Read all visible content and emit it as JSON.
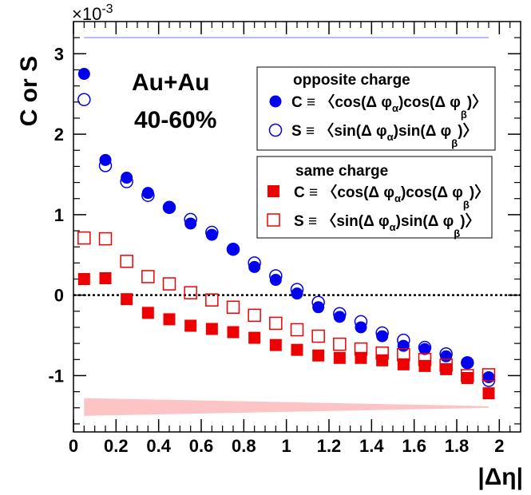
{
  "chart_data": {
    "type": "scatter",
    "xlabel": "|Δη|",
    "ylabel": "C or S",
    "y_scale_label": "×10",
    "y_scale_exponent": "-3",
    "xlim": [
      0,
      2.1
    ],
    "ylim": [
      -1.7,
      3.4
    ],
    "x_ticks": [
      0,
      0.2,
      0.4,
      0.6,
      0.8,
      1,
      1.2,
      1.4,
      1.6,
      1.8,
      2
    ],
    "x_tick_labels": [
      "0",
      "0.2",
      "0.4",
      "0.6",
      "0.8",
      "1",
      "1.2",
      "1.4",
      "1.6",
      "1.8",
      "2"
    ],
    "y_ticks": [
      -1,
      0,
      1,
      2,
      3
    ],
    "y_tick_labels": [
      "-1",
      "0",
      "1",
      "2",
      "3"
    ],
    "system_label": "Au+Au",
    "centrality_label": "40-60%",
    "zero_line": true,
    "legend": {
      "opposite_title": "opposite charge",
      "same_title": "same charge",
      "C_prefix": "C ≡ 〈cos(Δ φ",
      "C_mid": ")cos(Δ φ",
      "C_suffix": ")〉",
      "S_prefix": "S ≡ 〈sin(Δ φ",
      "S_mid": ")sin(Δ φ",
      "S_suffix": ")〉",
      "sub_alpha": "α",
      "sub_beta": "β"
    },
    "colors": {
      "blue": "#0000ee",
      "red": "#ee0000",
      "blue_band": "#b8b8f4",
      "red_band": "#fcc4c4"
    },
    "x": [
      0.05,
      0.15,
      0.25,
      0.35,
      0.45,
      0.55,
      0.65,
      0.75,
      0.85,
      0.95,
      1.05,
      1.15,
      1.25,
      1.35,
      1.45,
      1.55,
      1.65,
      1.75,
      1.85,
      1.95
    ],
    "series": [
      {
        "name": "opposite charge C",
        "marker": "filled-circle",
        "color": "#0000ee",
        "values": [
          2.75,
          1.68,
          1.46,
          1.27,
          1.09,
          0.89,
          0.75,
          0.57,
          0.35,
          0.19,
          0.02,
          -0.15,
          -0.27,
          -0.4,
          -0.51,
          -0.63,
          -0.67,
          -0.76,
          -0.84,
          -1.02
        ]
      },
      {
        "name": "opposite charge S",
        "marker": "open-circle",
        "color": "#0000ee",
        "values": [
          2.43,
          1.61,
          1.41,
          1.24,
          1.09,
          0.94,
          0.78,
          0.57,
          0.4,
          0.24,
          0.07,
          -0.09,
          -0.23,
          -0.33,
          -0.47,
          -0.56,
          -0.65,
          -0.73,
          -0.84,
          -1.06
        ]
      },
      {
        "name": "same charge C",
        "marker": "filled-square",
        "color": "#ee0000",
        "values": [
          0.2,
          0.21,
          -0.05,
          -0.22,
          -0.3,
          -0.38,
          -0.42,
          -0.46,
          -0.53,
          -0.62,
          -0.68,
          -0.75,
          -0.78,
          -0.78,
          -0.81,
          -0.86,
          -0.88,
          -0.92,
          -1.03,
          -1.22
        ]
      },
      {
        "name": "same charge S",
        "marker": "open-square",
        "color": "#ee0000",
        "values": [
          0.71,
          0.7,
          0.42,
          0.23,
          0.14,
          0.03,
          -0.06,
          -0.15,
          -0.25,
          -0.35,
          -0.43,
          -0.51,
          -0.61,
          -0.67,
          -0.72,
          -0.74,
          -0.8,
          -0.87,
          -1.0,
          -0.99
        ]
      }
    ],
    "systematic_bands": [
      {
        "name": "opposite charge systematic",
        "color": "#b8b8f4",
        "x_range": [
          0.05,
          1.95
        ],
        "y_low": [
          3.19,
          3.19
        ],
        "y_high": [
          3.21,
          3.21
        ]
      },
      {
        "name": "same charge systematic",
        "color": "#fcc4c4",
        "x_range": [
          0.05,
          1.95
        ],
        "y_low": [
          -1.5,
          -1.4
        ],
        "y_high": [
          -1.28,
          -1.38
        ]
      }
    ]
  }
}
